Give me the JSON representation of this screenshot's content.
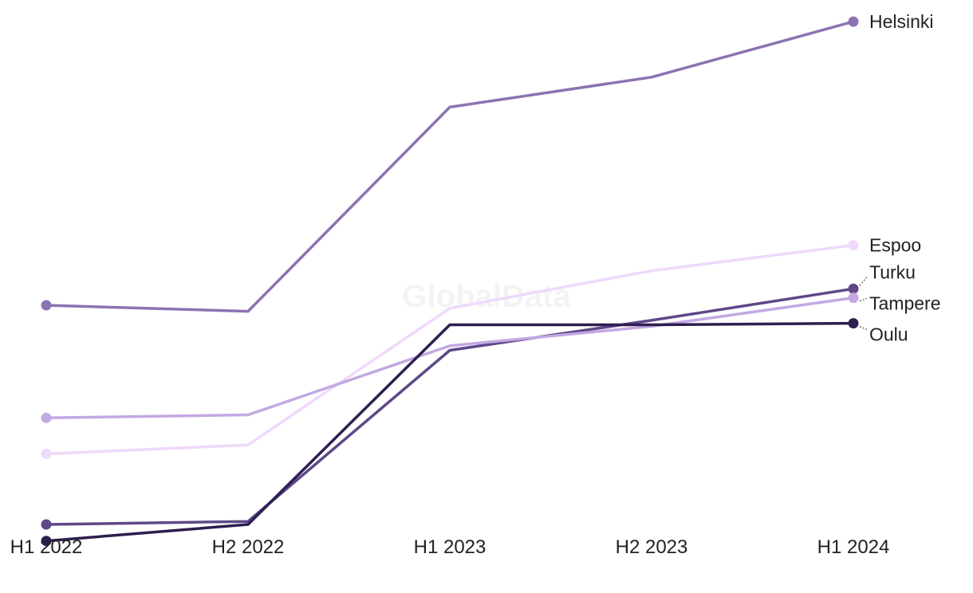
{
  "chart_data": {
    "type": "line",
    "categories": [
      "H1 2022",
      "H2 2022",
      "H1 2023",
      "H2 2023",
      "H1 2024"
    ],
    "series": [
      {
        "name": "Helsinki",
        "color": "#8c73b2",
        "values": [
          58.3,
          57.9,
          71.5,
          73.5,
          77.2
        ]
      },
      {
        "name": "Espoo",
        "color": "#f0d9fb",
        "values": [
          48.4,
          49.0,
          58.1,
          60.6,
          62.3
        ]
      },
      {
        "name": "Turku",
        "color": "#5e4888",
        "values": [
          43.7,
          43.9,
          55.3,
          57.3,
          59.4
        ]
      },
      {
        "name": "Tampere",
        "color": "#c3a8e3",
        "values": [
          50.8,
          51.0,
          55.6,
          56.9,
          58.8
        ]
      },
      {
        "name": "Oulu",
        "color": "#2e1e50",
        "values": [
          42.6,
          43.7,
          57.0,
          57.0,
          57.1
        ]
      }
    ],
    "ylim": [
      42,
      78
    ],
    "title": "",
    "xlabel": "",
    "ylabel": "",
    "grid": false,
    "legend": "direct labels at line ends"
  },
  "watermark": "GlobalData"
}
